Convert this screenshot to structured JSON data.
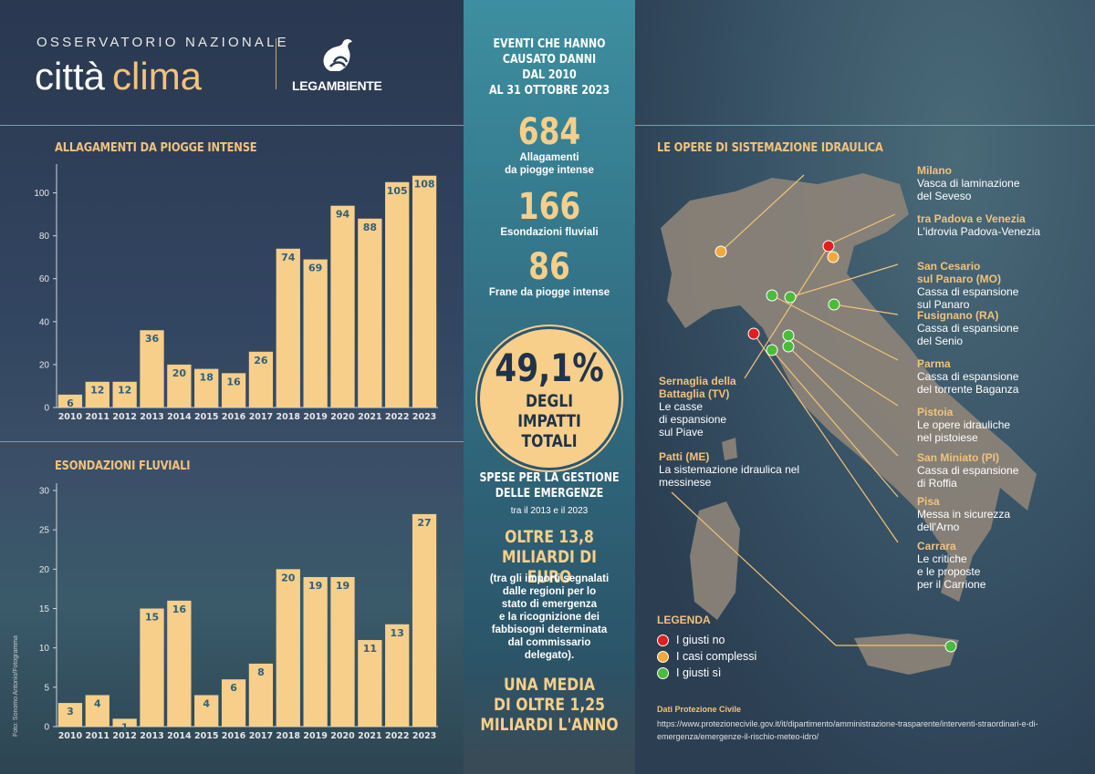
{
  "header": {
    "observatorio": "OSSERVATORIO NAZIONALE",
    "brand_word1": "città",
    "brand_word2": "clima",
    "partner": "LEGAMBIENTE"
  },
  "colors": {
    "bar": "#f7cf8a",
    "accent": "#f2c27a",
    "red": "#e02020",
    "orange": "#f2a93b",
    "green": "#4cbb3c"
  },
  "chart_data": [
    {
      "type": "bar",
      "title": "ALLAGAMENTI DA PIOGGE INTENSE",
      "categories": [
        "2010",
        "2011",
        "2012",
        "2013",
        "2014",
        "2015",
        "2016",
        "2017",
        "2018",
        "2019",
        "2020",
        "2021",
        "2022",
        "2023"
      ],
      "values": [
        6,
        12,
        12,
        36,
        20,
        18,
        16,
        26,
        74,
        69,
        94,
        88,
        105,
        108
      ],
      "yticks": [
        0,
        20,
        40,
        60,
        80,
        100
      ],
      "ylim": [
        0,
        110
      ],
      "grid": false
    },
    {
      "type": "bar",
      "title": "ESONDAZIONI FLUVIALI",
      "categories": [
        "2010",
        "2011",
        "2012",
        "2013",
        "2014",
        "2015",
        "2016",
        "2017",
        "2018",
        "2019",
        "2020",
        "2021",
        "2022",
        "2023"
      ],
      "values": [
        3,
        4,
        1,
        15,
        16,
        4,
        6,
        8,
        20,
        19,
        19,
        11,
        13,
        27
      ],
      "yticks": [
        0,
        5,
        10,
        15,
        20,
        25,
        30
      ],
      "ylim": [
        0,
        30
      ],
      "grid": false
    }
  ],
  "photo_credit": "Foto: Sonomo Antonio/Fotogramma",
  "middle": {
    "heading": [
      "EVENTI CHE HANNO",
      "CAUSATO DANNI",
      "DAL 2010",
      "AL 31 OTTOBRE 2023"
    ],
    "stats": [
      {
        "value": "684",
        "caption": [
          "Allagamenti",
          "da piogge intense"
        ]
      },
      {
        "value": "166",
        "caption": [
          "Esondazioni fluviali"
        ]
      },
      {
        "value": "86",
        "caption": [
          "Frane da piogge intense"
        ]
      }
    ],
    "share_value": "49,1%",
    "share_caption": [
      "DEGLI IMPATTI",
      "TOTALI"
    ],
    "spese_heading": [
      "SPESE PER LA GESTIONE",
      "DELLE EMERGENZE"
    ],
    "spese_period": "tra il 2013 e il 2023",
    "spese_amount": [
      "OLTRE 13,8",
      "MILIARDI DI EURO"
    ],
    "spese_note": [
      "(tra gli importi segnalati",
      "dalle regioni per lo",
      "stato di emergenza",
      "e la ricognizione dei",
      "fabbisogni determinata",
      "dal commissario",
      "delegato)."
    ],
    "media": [
      "UNA MEDIA",
      "DI OLTRE 1,25",
      "MILIARDI L'ANNO"
    ]
  },
  "map": {
    "title": "LE OPERE DI SISTEMAZIONE IDRAULICA",
    "labels": [
      {
        "place": "Milano",
        "desc": [
          "Vasca di laminazione",
          "del Seveso"
        ]
      },
      {
        "place": "tra Padova e Venezia",
        "desc": [
          "L'idrovia Padova-Venezia"
        ]
      },
      {
        "place": "San Cesario",
        "place2": "sul Panaro (MO)",
        "desc": [
          "Cassa di espansione",
          "sul Panaro"
        ]
      },
      {
        "place": "Fusignano (RA)",
        "desc": [
          "Cassa di espansione",
          "del Senio"
        ]
      },
      {
        "place": "Parma",
        "desc": [
          "Cassa di espansione",
          "del torrente Baganza"
        ]
      },
      {
        "place": "Pistoia",
        "desc": [
          "Le opere idrauliche",
          "nel pistoiese"
        ]
      },
      {
        "place": "San Miniato (PI)",
        "desc": [
          "Cassa di espansione",
          "di Roffia"
        ]
      },
      {
        "place": "Pisa",
        "desc": [
          "Messa in sicurezza",
          "dell'Arno"
        ]
      },
      {
        "place": "Carrara",
        "desc": [
          "Le critiche",
          "e le proposte",
          "per il Carrione"
        ]
      },
      {
        "place": "Sernaglia della",
        "place2": "Battaglia (TV)",
        "desc": [
          "Le casse",
          "di espansione",
          "sul Piave"
        ]
      },
      {
        "place": "Patti (ME)",
        "desc": [
          "La sistemazione idraulica nel",
          "messinese"
        ]
      }
    ],
    "legend_title": "LEGENDA",
    "legend": [
      {
        "label": "I giusti no",
        "color": "#e02020"
      },
      {
        "label": "I casi complessi",
        "color": "#f2a93b"
      },
      {
        "label": "I giusti sì",
        "color": "#4cbb3c"
      }
    ],
    "source_title": "Dati Protezione Civile",
    "source_url": "https://www.protezionecivile.gov.it/it/dipartimento/amministrazione-trasparente/interventi-straordinari-e-di-emergenza/emergenze-il-rischio-meteo-idro/"
  }
}
